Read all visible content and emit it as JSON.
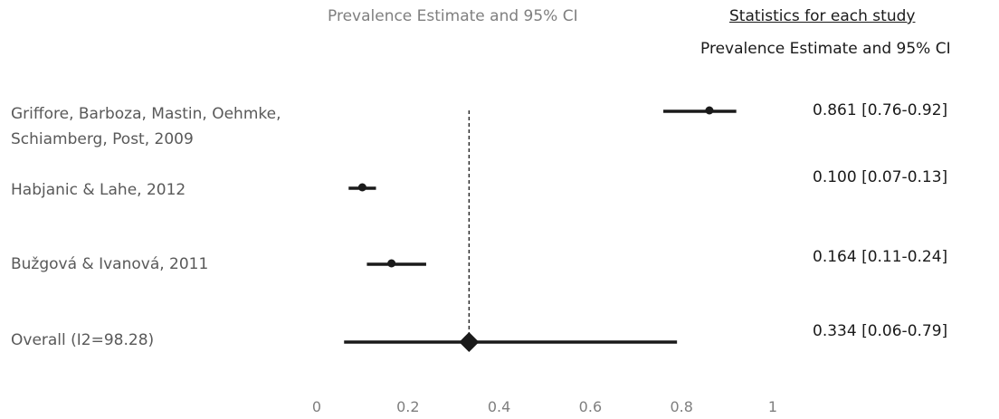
{
  "chart_data": {
    "type": "forest",
    "title": "Prevalence Estimate and 95% CI",
    "stats_header": "Statistics for each study",
    "stats_subheader": "Prevalence Estimate and 95% CI",
    "xlim": [
      0,
      1
    ],
    "x_ticks": [
      "0",
      "0.2",
      "0.4",
      "0.6",
      "0.8",
      "1"
    ],
    "reference_line": 0.334,
    "studies": [
      {
        "label": "Griffore, Barboza, Mastin, Oehmke,\nSchiamberg, Post, 2009",
        "estimate": 0.861,
        "lower": 0.76,
        "upper": 0.92,
        "stat_text": "0.861 [0.76-0.92]"
      },
      {
        "label": "Habjanic & Lahe, 2012",
        "estimate": 0.1,
        "lower": 0.07,
        "upper": 0.13,
        "stat_text": "0.100 [0.07-0.13]"
      },
      {
        "label": "Bužgová & Ivanová, 2011",
        "estimate": 0.164,
        "lower": 0.11,
        "upper": 0.24,
        "stat_text": "0.164 [0.11-0.24]"
      }
    ],
    "overall": {
      "label": "Overall (I2=98.28)",
      "estimate": 0.334,
      "lower": 0.06,
      "upper": 0.79,
      "stat_text": "0.334 [0.06-0.79]"
    }
  }
}
